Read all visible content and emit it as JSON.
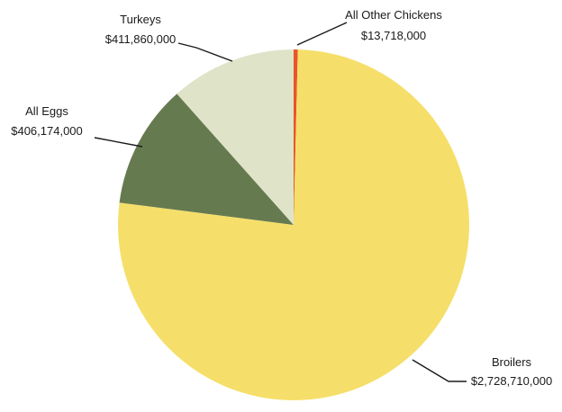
{
  "chart_data": {
    "type": "pie",
    "title": "",
    "slices": [
      {
        "name": "All Other Chickens",
        "label": "$13,718,000",
        "value": 13718000,
        "color": "#e8552a"
      },
      {
        "name": "Broilers",
        "label": "$2,728,710,000",
        "value": 2728710000,
        "color": "#f5df6a"
      },
      {
        "name": "All Eggs",
        "label": "$406,174,000",
        "value": 406174000,
        "color": "#667a4f"
      },
      {
        "name": "Turkeys",
        "label": "$411,860,000",
        "value": 411860000,
        "color": "#dfe4c8"
      }
    ],
    "start_angle": "12 o'clock",
    "direction": "clockwise",
    "legend": "none",
    "label_style": "outside labels with leader lines"
  }
}
